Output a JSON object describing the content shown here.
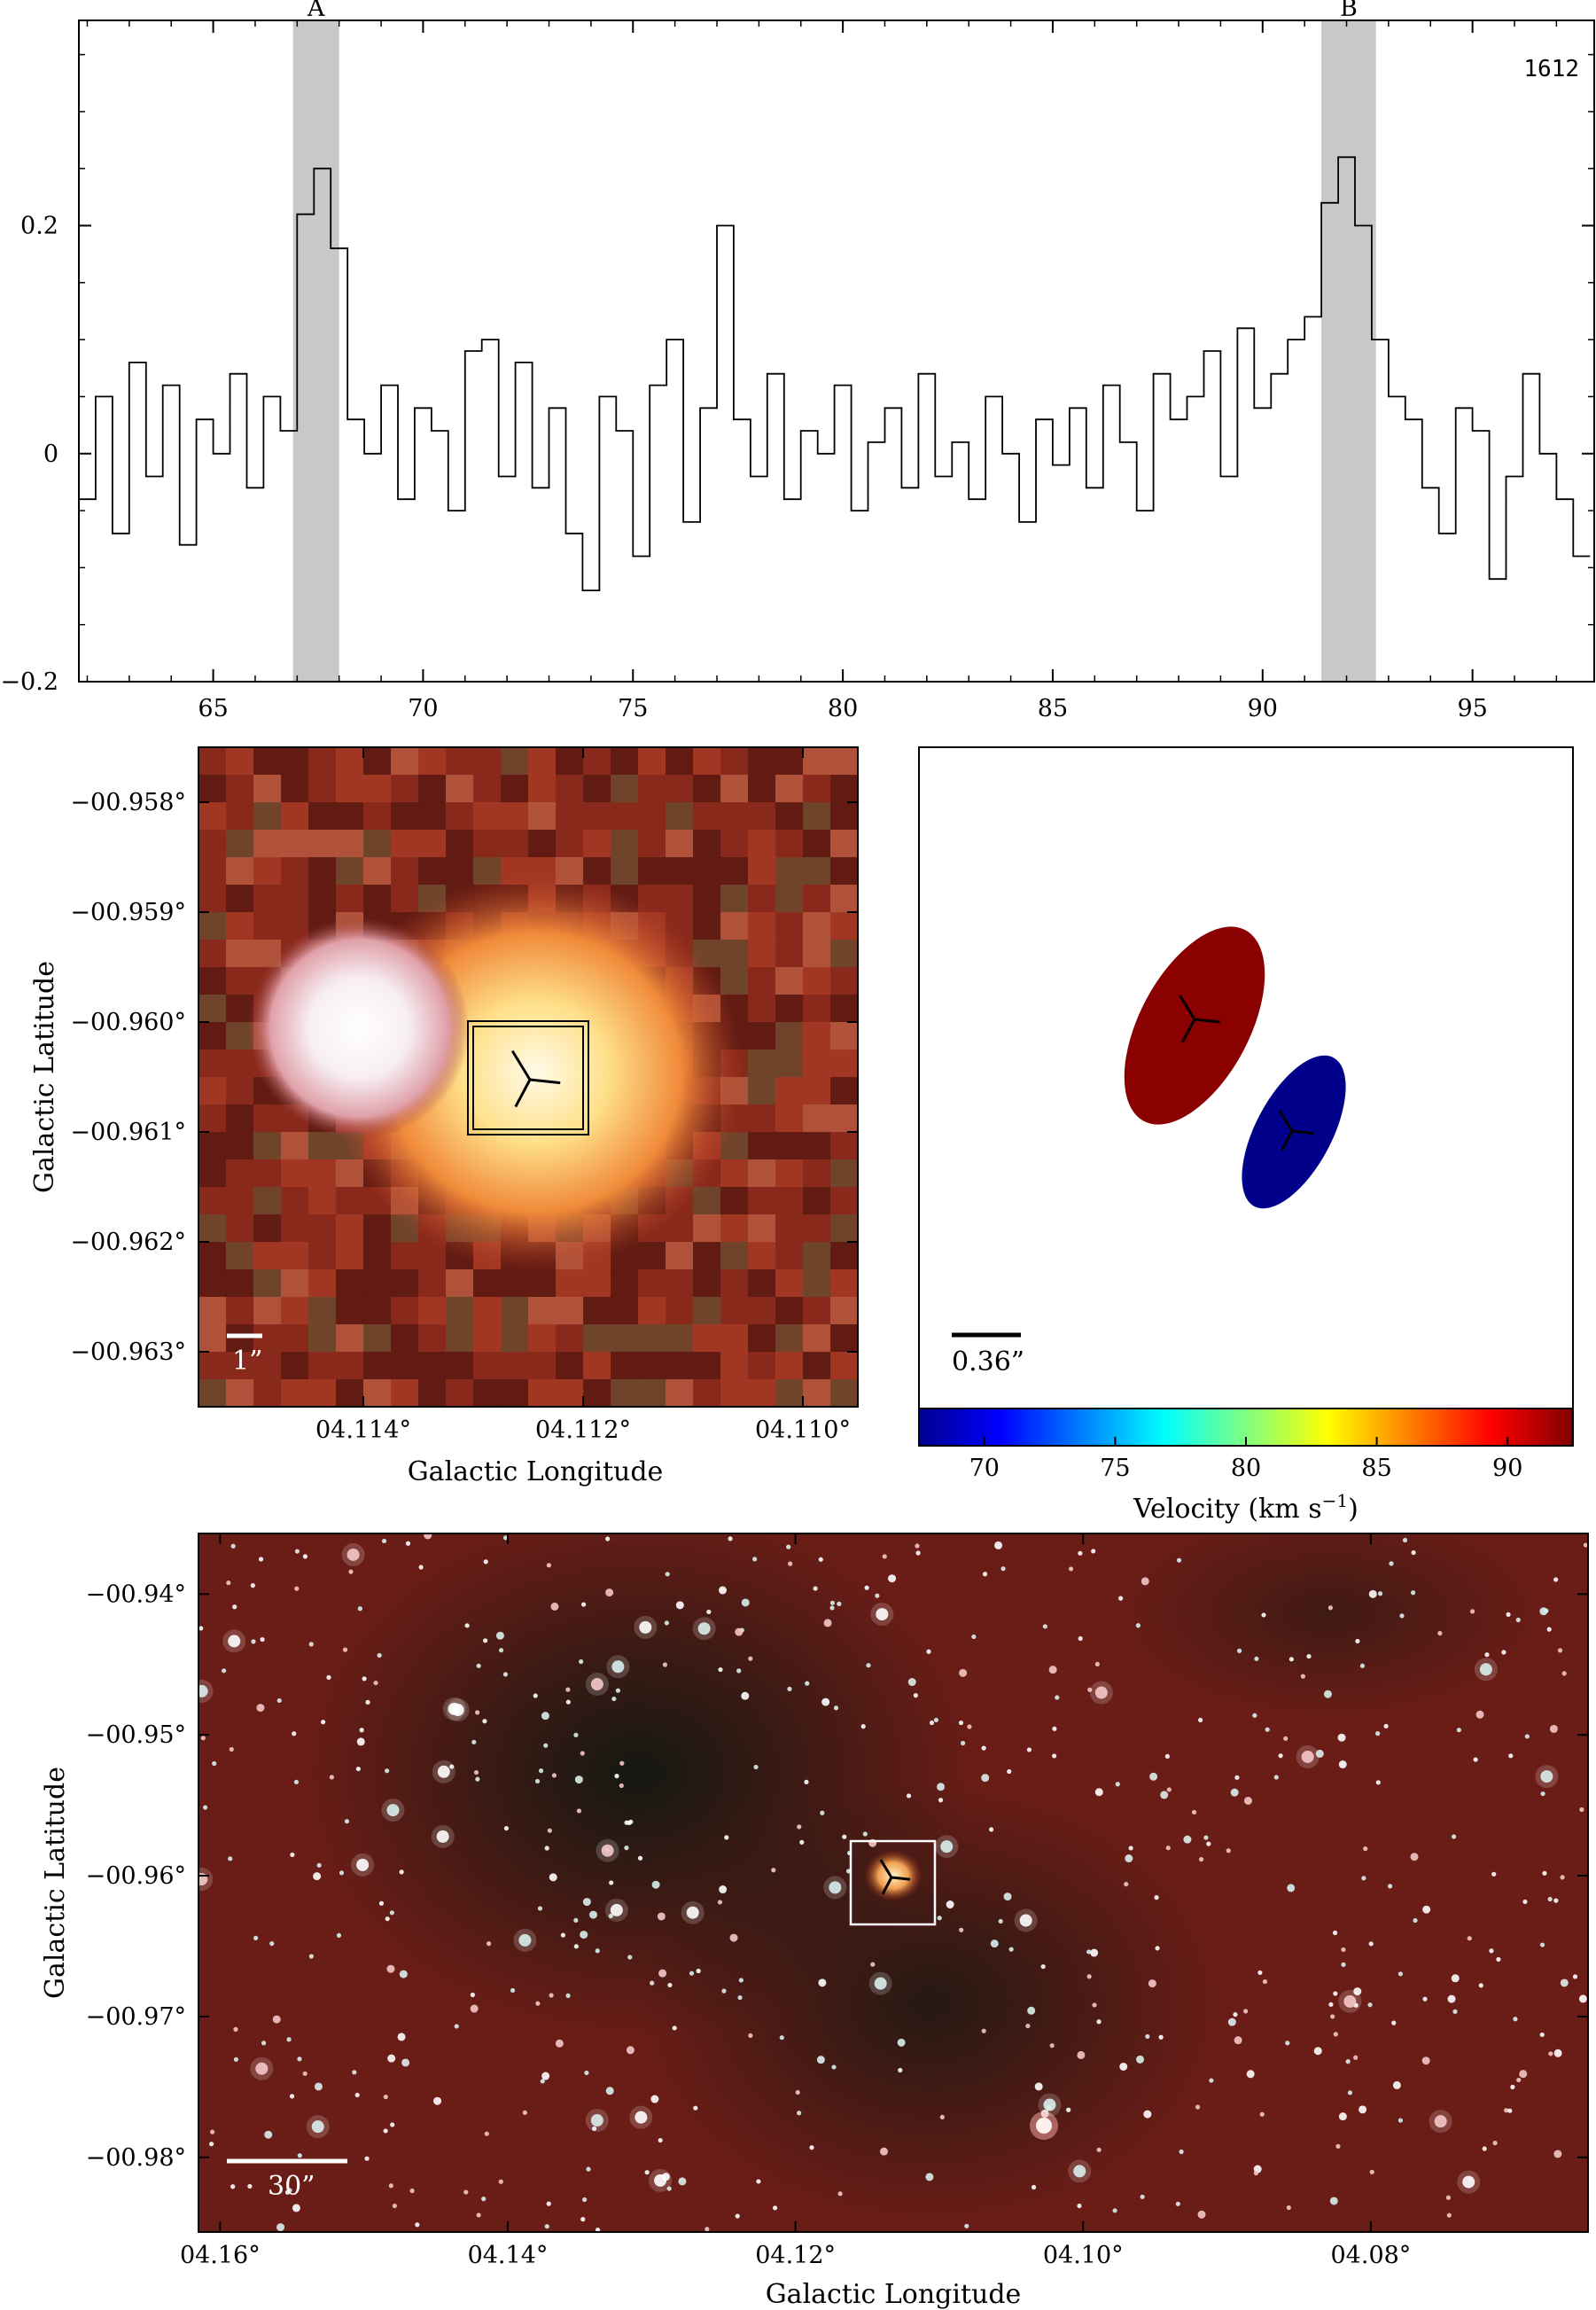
{
  "spectrum": {
    "label": "1612",
    "xticks": [
      65,
      70,
      75,
      80,
      85,
      90,
      95
    ],
    "yticks": [
      {
        "v": -0.2,
        "t": "−0.2"
      },
      {
        "v": 0,
        "t": "0"
      },
      {
        "v": 0.2,
        "t": "0.2"
      }
    ],
    "bands": [
      {
        "label": "A",
        "from": 66.9,
        "to": 68.0
      },
      {
        "label": "B",
        "from": 91.4,
        "to": 92.7
      }
    ]
  },
  "chart_data": [
    {
      "type": "line",
      "title": "",
      "xlabel": "",
      "ylabel": "",
      "xlim": [
        61.8,
        97.9
      ],
      "ylim": [
        -0.2,
        0.38
      ],
      "series": [
        {
          "x": [
            62.0,
            62.4,
            62.8,
            63.2,
            63.6,
            64.0,
            64.4,
            64.8,
            65.2,
            65.6,
            66.0,
            66.4,
            66.8,
            67.2,
            67.6,
            68.0,
            68.4,
            68.8,
            69.2,
            69.6,
            70.0,
            70.4,
            70.8,
            71.2,
            71.6,
            72.0,
            72.4,
            72.8,
            73.2,
            73.6,
            74.0,
            74.4,
            74.8,
            75.2,
            75.6,
            76.0,
            76.4,
            76.8,
            77.2,
            77.6,
            78.0,
            78.4,
            78.8,
            79.2,
            79.6,
            80.0,
            80.4,
            80.8,
            81.2,
            81.6,
            82.0,
            82.4,
            82.8,
            83.2,
            83.6,
            84.0,
            84.4,
            84.8,
            85.2,
            85.6,
            86.0,
            86.4,
            86.8,
            87.2,
            87.6,
            88.0,
            88.4,
            88.8,
            89.2,
            89.6,
            90.0,
            90.4,
            90.8,
            91.2,
            91.6,
            92.0,
            92.4,
            92.8,
            93.2,
            93.6,
            94.0,
            94.4,
            94.8,
            95.2,
            95.6,
            96.0,
            96.4,
            96.8,
            97.2,
            97.6
          ],
          "y": [
            -0.04,
            0.05,
            -0.07,
            0.08,
            -0.02,
            0.06,
            -0.08,
            0.03,
            0.0,
            0.07,
            -0.03,
            0.05,
            0.02,
            0.21,
            0.25,
            0.18,
            0.03,
            0.0,
            0.06,
            -0.04,
            0.04,
            0.02,
            -0.05,
            0.09,
            0.1,
            -0.02,
            0.08,
            -0.03,
            0.04,
            -0.07,
            -0.12,
            0.05,
            0.02,
            -0.09,
            0.06,
            0.1,
            -0.06,
            0.04,
            0.2,
            0.03,
            -0.02,
            0.07,
            -0.04,
            0.02,
            0.0,
            0.06,
            -0.05,
            0.01,
            0.04,
            -0.03,
            0.07,
            -0.02,
            0.01,
            -0.04,
            0.05,
            0.0,
            -0.06,
            0.03,
            -0.01,
            0.04,
            -0.03,
            0.06,
            0.01,
            -0.05,
            0.07,
            0.03,
            0.05,
            0.09,
            -0.02,
            0.11,
            0.04,
            0.07,
            0.1,
            0.12,
            0.22,
            0.26,
            0.2,
            0.1,
            0.05,
            0.03,
            -0.03,
            -0.07,
            0.04,
            0.02,
            -0.11,
            -0.02,
            0.07,
            0.0,
            -0.04,
            -0.09
          ]
        }
      ]
    },
    {
      "type": "scatter",
      "title": "",
      "xlabel": "Galactic Longitude",
      "ylabel": "Galactic Latitude",
      "x": [
        4.112
      ],
      "y": [
        -0.9605
      ]
    },
    {
      "type": "scatter",
      "title": "",
      "xlabel": "",
      "ylabel": "",
      "colorbar_label": "Velocity (km s⁻¹)",
      "colorbar_ticks": [
        70,
        75,
        80,
        85,
        90
      ],
      "colorbar_range": [
        67.5,
        92.5
      ],
      "series": [
        {
          "label": "B",
          "velocity": 91.8
        },
        {
          "label": "A",
          "velocity": 67.5
        }
      ]
    },
    {
      "type": "scatter",
      "title": "",
      "xlabel": "Galactic Longitude",
      "ylabel": "Galactic Latitude",
      "x": [
        4.112
      ],
      "y": [
        -0.96
      ]
    }
  ],
  "zoom_panel": {
    "xlabel": "Galactic Longitude",
    "ylabel": "Galactic Latitude",
    "xticks": [
      {
        "v": 4.114,
        "t": "04.114°"
      },
      {
        "v": 4.112,
        "t": "04.112°"
      },
      {
        "v": 4.11,
        "t": "04.110°"
      }
    ],
    "xrange": [
      4.1155,
      4.1095
    ],
    "yticks": [
      {
        "v": -0.958,
        "t": "−00.958°"
      },
      {
        "v": -0.959,
        "t": "−00.959°"
      },
      {
        "v": -0.96,
        "t": "−00.960°"
      },
      {
        "v": -0.961,
        "t": "−00.961°"
      },
      {
        "v": -0.962,
        "t": "−00.962°"
      },
      {
        "v": -0.963,
        "t": "−00.963°"
      }
    ],
    "yrange": [
      -0.9575,
      -0.9635
    ],
    "scale_label": "1”"
  },
  "maser_panel": {
    "scale_label": "0.36”",
    "colorbar": {
      "label": "Velocity (km s",
      "label_sup": "−1",
      "label_end": ")",
      "ticks": [
        70,
        75,
        80,
        85,
        90
      ]
    }
  },
  "field_panel": {
    "xlabel": "Galactic Longitude",
    "ylabel": "Galactic Latitude",
    "xticks": [
      {
        "v": 4.16,
        "t": "04.16°"
      },
      {
        "v": 4.14,
        "t": "04.14°"
      },
      {
        "v": 4.12,
        "t": "04.12°"
      },
      {
        "v": 4.1,
        "t": "04.10°"
      },
      {
        "v": 4.08,
        "t": "04.08°"
      }
    ],
    "xrange": [
      4.1615,
      4.0649
    ],
    "yticks": [
      {
        "v": -0.94,
        "t": "−00.94°"
      },
      {
        "v": -0.95,
        "t": "−00.95°"
      },
      {
        "v": -0.96,
        "t": "−00.96°"
      },
      {
        "v": -0.97,
        "t": "−00.97°"
      },
      {
        "v": -0.98,
        "t": "−00.98°"
      }
    ],
    "yrange": [
      -0.9357,
      -0.9853
    ],
    "scale_label": "30”"
  },
  "colors": {
    "band": "#c8c8c8",
    "maser_red": "#8b0000",
    "maser_blue": "#00008b",
    "frame": "#000000"
  }
}
